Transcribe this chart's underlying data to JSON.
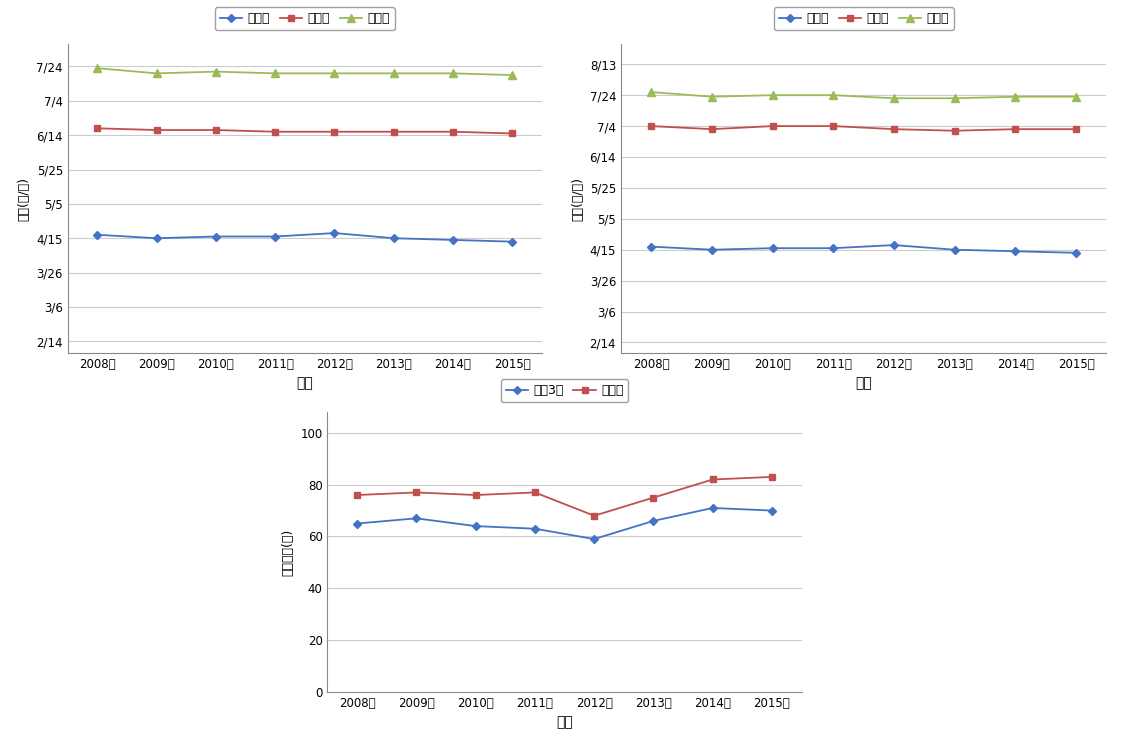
{
  "years": [
    2008,
    2009,
    2010,
    2011,
    2012,
    2013,
    2014,
    2015
  ],
  "year_labels": [
    "2008년",
    "2009년",
    "2010년",
    "2011년",
    "2012년",
    "2013년",
    "2014년",
    "2015년"
  ],
  "chart1_pajonggi": [
    107,
    105,
    106,
    106,
    108,
    105,
    104,
    103
  ],
  "chart1_chulsagi": [
    169,
    168,
    168,
    167,
    167,
    167,
    167,
    166
  ],
  "chart1_suhwakgi": [
    204,
    201,
    202,
    201,
    201,
    201,
    201,
    200
  ],
  "chart2_pajonggi": [
    107,
    105,
    106,
    106,
    108,
    105,
    104,
    103
  ],
  "chart2_chulsagi": [
    185,
    183,
    185,
    185,
    183,
    182,
    183,
    183
  ],
  "chart2_suhwakgi": [
    207,
    204,
    205,
    205,
    203,
    203,
    204,
    204
  ],
  "chart3_danok": [
    65,
    67,
    64,
    63,
    59,
    66,
    71,
    70
  ],
  "chart3_ilmichal": [
    76,
    77,
    76,
    77,
    68,
    75,
    82,
    83
  ],
  "color_blue": "#4472C4",
  "color_red": "#C0504D",
  "color_green": "#9BBB59",
  "legend_pajonggi": "파종기",
  "legend_chulsagi": "출사기",
  "legend_suhwakgi": "수확기",
  "legend_danok": "단옥3호",
  "legend_ilmichal": "일미찰",
  "xlabel": "연도",
  "ylabel_top": "날짜(월/일)",
  "ylabel_bottom": "출사일수(일)"
}
